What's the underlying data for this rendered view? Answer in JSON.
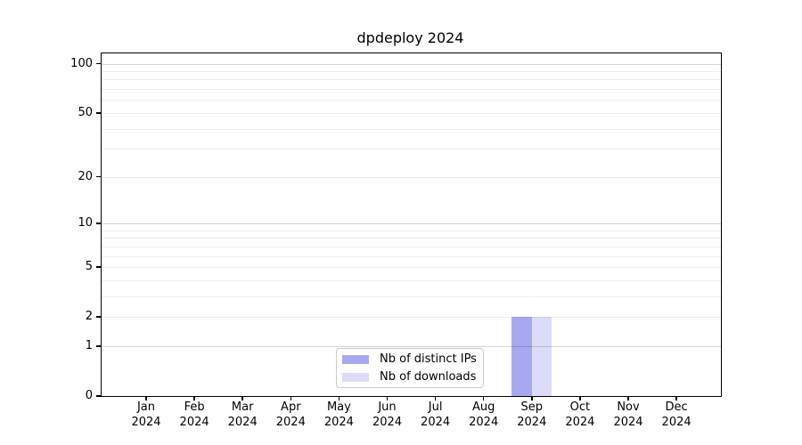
{
  "chart_data": {
    "type": "bar",
    "title": "dpdeploy 2024",
    "year": "2024",
    "months": [
      "Jan",
      "Feb",
      "Mar",
      "Apr",
      "May",
      "Jun",
      "Jul",
      "Aug",
      "Sep",
      "Oct",
      "Nov",
      "Dec"
    ],
    "series": [
      {
        "name": "Nb of distinct IPs",
        "color": "#a8a8f0",
        "values": [
          0,
          0,
          0,
          0,
          0,
          0,
          0,
          0,
          2,
          0,
          0,
          0
        ]
      },
      {
        "name": "Nb of downloads",
        "color": "#dcdcf8",
        "values": [
          0,
          0,
          0,
          0,
          0,
          0,
          0,
          0,
          2,
          0,
          0,
          0
        ]
      }
    ],
    "y_axis": {
      "scale": "log1p",
      "tick_values": [
        0,
        1,
        2,
        5,
        10,
        20,
        50,
        100
      ],
      "gridlines_major": [
        1,
        10,
        100
      ],
      "gridlines_minor": [
        2,
        3,
        4,
        5,
        6,
        7,
        8,
        9,
        20,
        30,
        40,
        50,
        60,
        70,
        80,
        90
      ]
    },
    "legend_position": "lower center",
    "grid": "on"
  }
}
